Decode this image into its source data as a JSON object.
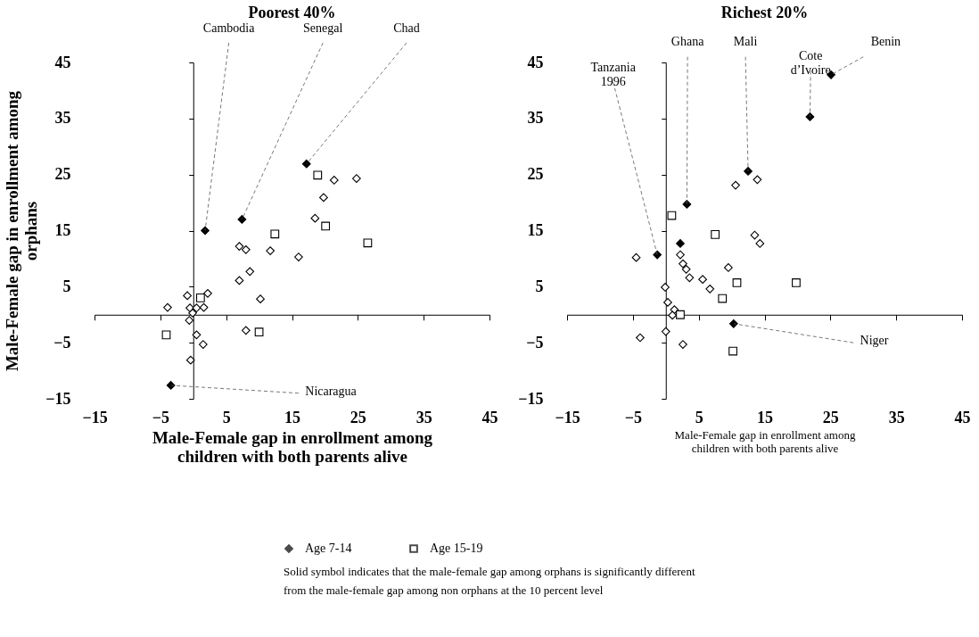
{
  "chart_data": [
    {
      "type": "scatter",
      "title": "Poorest 40%",
      "xlabel": "Male-Female gap in enrollment among children with both parents alive",
      "ylabel": "Male-Female gap in enrollment among orphans",
      "xlim": [
        -15,
        45
      ],
      "ylim": [
        -15,
        45
      ],
      "xticks": [
        -15,
        -5,
        5,
        15,
        25,
        35,
        45
      ],
      "yticks": [
        -15,
        -5,
        5,
        15,
        25,
        35,
        45
      ],
      "legend": "bottom",
      "series": [
        {
          "name": "Age 7-14",
          "color": "#000000",
          "marker": "diamond",
          "x": [
            1.8,
            7.4,
            17.2,
            -3.4
          ],
          "values": [
            15,
            17,
            26.9,
            -12.6
          ]
        },
        {
          "color": "#ffffff",
          "marker": "diamond",
          "x": [
            21.4,
            24.8,
            19.8,
            18.5,
            7,
            8,
            11.7,
            16,
            8.6,
            7,
            10.2,
            -0.9,
            2.2,
            -3.9,
            -0.5,
            0.5,
            1.6,
            -0.1,
            -0.6,
            0.5,
            1.5,
            -0.4,
            8
          ],
          "values": [
            24,
            24.3,
            20.9,
            17.2,
            12.2,
            11.6,
            11.4,
            10.3,
            7.7,
            6.1,
            2.8,
            3.4,
            3.8,
            1.3,
            1.2,
            1.2,
            1.3,
            0.3,
            -1,
            -3.6,
            -5.3,
            -8.1,
            -2.8
          ]
        },
        {
          "name": "Age 15-19",
          "color": "#ffffff",
          "marker": "square",
          "x": [
            18.9,
            12.4,
            20.1,
            26.5,
            1.1,
            -4.1,
            10
          ],
          "values": [
            24.9,
            14.4,
            15.8,
            12.8,
            3,
            -3.6,
            -3.1
          ]
        }
      ],
      "annotations": [
        {
          "text": "Cambodia",
          "x": 1.8,
          "y": 15
        },
        {
          "text": "Senegal",
          "x": 7.4,
          "y": 17
        },
        {
          "text": "Chad",
          "x": 17.2,
          "y": 26.9
        },
        {
          "text": "Nicaragua",
          "x": -3.4,
          "y": -12.6
        }
      ]
    },
    {
      "type": "scatter",
      "title": "Richest 20%",
      "xlabel": "Male-Female gap in enrollment among children with both parents alive",
      "xlim": [
        -15,
        45
      ],
      "ylim": [
        -15,
        45
      ],
      "xticks": [
        -15,
        -5,
        5,
        15,
        25,
        35,
        45
      ],
      "yticks": [
        -15,
        -5,
        5,
        15,
        25,
        35,
        45
      ],
      "legend": "bottom",
      "series": [
        {
          "name": "Age 7-14",
          "color": "#000000",
          "marker": "diamond",
          "x": [
            25.1,
            21.9,
            12.5,
            3.2,
            2.2,
            -1.3,
            10.3
          ],
          "values": [
            42.8,
            35.3,
            25.6,
            19.7,
            12.7,
            10.7,
            -1.6
          ]
        },
        {
          "color": "#ffffff",
          "marker": "diamond",
          "x": [
            10.6,
            13.9,
            13.5,
            14.3,
            -4.5,
            2.2,
            2.6,
            3.1,
            3.6,
            5.6,
            6.7,
            9.5,
            -0.1,
            0.3,
            1.3,
            1,
            0,
            -3.9,
            2.6
          ],
          "values": [
            23.1,
            24.1,
            14.2,
            12.7,
            10.2,
            10.7,
            9.1,
            8.1,
            6.6,
            6.3,
            4.6,
            8.4,
            4.9,
            2.2,
            0.9,
            -0.1,
            -3,
            -4.1,
            -5.3
          ]
        },
        {
          "name": "Age 15-19",
          "color": "#ffffff",
          "marker": "square",
          "x": [
            0.9,
            7.5,
            10.8,
            19.8,
            8.6,
            2.2,
            10.2
          ],
          "values": [
            17.7,
            14.3,
            5.7,
            5.7,
            2.9,
            0,
            -6.5
          ]
        }
      ],
      "annotations": [
        {
          "text": "Tanzania 1996",
          "x": -1.3,
          "y": 10.7
        },
        {
          "text": "Ghana",
          "x": 3.2,
          "y": 19.7
        },
        {
          "text": "Mali",
          "x": 12.5,
          "y": 25.6
        },
        {
          "text": "Cote d’Ivoire",
          "x": 21.9,
          "y": 35.3
        },
        {
          "text": "Benin",
          "x": 25.1,
          "y": 42.8
        },
        {
          "text": "Niger",
          "x": 10.3,
          "y": -1.6
        },
        "Solid symbol indicates that the male-female gap among orphans is significantly different from the male-female gap among non orphans at the 10 percent level"
      ]
    }
  ]
}
